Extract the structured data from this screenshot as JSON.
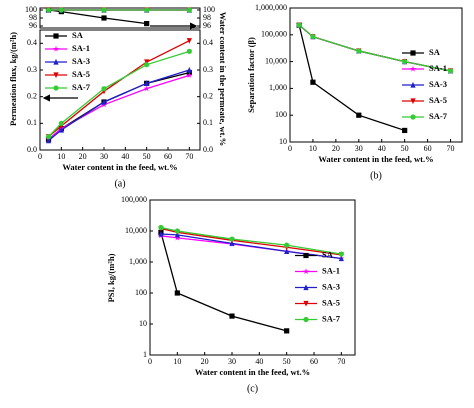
{
  "chart_data": [
    {
      "type": "line",
      "x": [
        4,
        10,
        30,
        50,
        70
      ],
      "xlim": [
        0,
        75
      ],
      "ylim": [
        95.5,
        100.5
      ],
      "yticks": [
        96,
        98,
        100
      ],
      "mirror_ticks": true,
      "ylabel_right": "Water content in the permeate, wt.%",
      "series": [
        {
          "color": "#000000",
          "marker": "square",
          "values": [
            100,
            99.6,
            98.0,
            96.6,
            null
          ]
        },
        {
          "color": "#ff00ff",
          "marker": "star",
          "values": [
            100,
            100,
            100,
            100,
            100
          ]
        },
        {
          "color": "#1f1fcc",
          "marker": "triangle",
          "values": [
            100,
            100,
            100,
            100,
            100
          ]
        },
        {
          "color": "#e00000",
          "marker": "triangle-down",
          "values": [
            100,
            100,
            100,
            100,
            100
          ]
        },
        {
          "color": "#33cc33",
          "marker": "circle",
          "values": [
            100,
            100,
            100,
            100,
            100
          ]
        }
      ]
    },
    {
      "type": "line",
      "x": [
        4,
        10,
        30,
        50,
        70
      ],
      "xlim": [
        0,
        75
      ],
      "ylim": [
        0,
        0.45
      ],
      "yticks": [
        {
          "value": 0,
          "label": "0.0"
        },
        0.1,
        0.2,
        0.3,
        0.4
      ],
      "xticks": [
        0,
        10,
        20,
        30,
        40,
        50,
        60,
        70
      ],
      "mirror_ticks": true,
      "xlabel": "Water content in the feed, wt.%",
      "ylabel": "Permeation flux, kg/(m²h)",
      "panel_label": "(a)",
      "legend_loc": "upper left",
      "series": [
        {
          "name": "SA",
          "color": "#000000",
          "marker": "square",
          "values": [
            0.04,
            0.08,
            0.18,
            0.25,
            0.29
          ]
        },
        {
          "name": "SA-1",
          "color": "#ff00ff",
          "marker": "star",
          "values": [
            0.04,
            0.08,
            0.17,
            0.23,
            0.28
          ]
        },
        {
          "name": "SA-3",
          "color": "#1f1fcc",
          "marker": "triangle",
          "values": [
            0.035,
            0.075,
            0.18,
            0.25,
            0.3
          ]
        },
        {
          "name": "SA-5",
          "color": "#e00000",
          "marker": "triangle-down",
          "values": [
            0.05,
            0.09,
            0.22,
            0.33,
            0.41
          ]
        },
        {
          "name": "SA-7",
          "color": "#33cc33",
          "marker": "circle",
          "values": [
            0.05,
            0.1,
            0.23,
            0.32,
            0.37
          ]
        }
      ]
    },
    {
      "type": "line",
      "log_y": true,
      "x": [
        4,
        10,
        30,
        50,
        70
      ],
      "xlim": [
        0,
        75
      ],
      "ylim": [
        10,
        1000000
      ],
      "yticks": [
        10,
        100,
        {
          "value": 1000,
          "label": "1,000"
        },
        {
          "value": 10000,
          "label": "10,000"
        },
        {
          "value": 100000,
          "label": "100,000"
        },
        {
          "value": 1000000,
          "label": "1,000,000"
        }
      ],
      "xticks": [
        0,
        10,
        20,
        30,
        40,
        50,
        60,
        70
      ],
      "xlabel": "Water content in the feed, wt.%",
      "ylabel": "Separation factor (β)",
      "panel_label": "(b)",
      "legend_loc": "center right",
      "series": [
        {
          "name": "SA",
          "color": "#000000",
          "marker": "square",
          "values": [
            230000,
            1700,
            100,
            27,
            null
          ]
        },
        {
          "name": "SA-1",
          "color": "#ff00ff",
          "marker": "star",
          "values": [
            230000,
            85000,
            25000,
            10000,
            4500
          ]
        },
        {
          "name": "SA-3",
          "color": "#1f1fcc",
          "marker": "triangle",
          "values": [
            230000,
            85000,
            25000,
            10000,
            4500
          ]
        },
        {
          "name": "SA-5",
          "color": "#e00000",
          "marker": "triangle-down",
          "values": [
            230000,
            85000,
            25000,
            10000,
            4500
          ]
        },
        {
          "name": "SA-7",
          "color": "#33cc33",
          "marker": "circle",
          "values": [
            230000,
            85000,
            25000,
            10000,
            4500
          ]
        }
      ]
    },
    {
      "type": "line",
      "log_y": true,
      "x": [
        4,
        10,
        30,
        50,
        70
      ],
      "xlim": [
        0,
        75
      ],
      "ylim": [
        1,
        100000
      ],
      "yticks": [
        1,
        10,
        100,
        {
          "value": 1000,
          "label": "1,000"
        },
        {
          "value": 10000,
          "label": "10,000"
        },
        {
          "value": 100000,
          "label": "100,000"
        }
      ],
      "xticks": [
        0,
        10,
        20,
        30,
        40,
        50,
        60,
        70
      ],
      "xlabel": "Water content in the feed, wt.%",
      "ylabel": "PSI, kg/(m²h)",
      "panel_label": "(c)",
      "legend_loc": "center right",
      "series": [
        {
          "name": "SA",
          "color": "#000000",
          "marker": "square",
          "values": [
            9000,
            100,
            18,
            6,
            null
          ]
        },
        {
          "name": "SA-1",
          "color": "#ff00ff",
          "marker": "star",
          "values": [
            7000,
            6000,
            3800,
            2200,
            1300
          ]
        },
        {
          "name": "SA-3",
          "color": "#1f1fcc",
          "marker": "triangle",
          "values": [
            8000,
            7500,
            4000,
            2200,
            1300
          ]
        },
        {
          "name": "SA-5",
          "color": "#e00000",
          "marker": "triangle-down",
          "values": [
            12000,
            9000,
            5000,
            3000,
            1700
          ]
        },
        {
          "name": "SA-7",
          "color": "#33cc33",
          "marker": "circle",
          "values": [
            13000,
            10000,
            5500,
            3500,
            1800
          ]
        }
      ]
    }
  ]
}
